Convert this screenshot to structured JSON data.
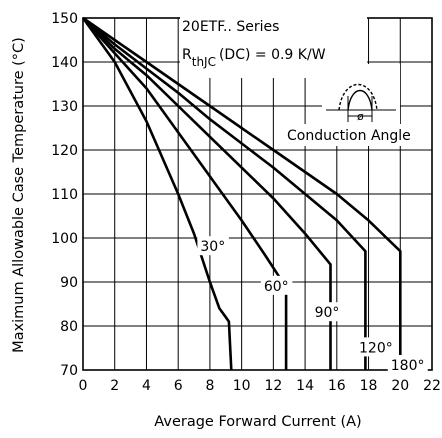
{
  "chart_data": {
    "type": "line",
    "xlabel": "Average Forward Current (A)",
    "ylabel": "Maximum Allowable Case Temperature (°C)",
    "xlim": [
      0,
      22
    ],
    "ylim": [
      70,
      150
    ],
    "x_ticks": [
      "0",
      "2",
      "4",
      "6",
      "8",
      "10",
      "12",
      "14",
      "16",
      "18",
      "20",
      "22"
    ],
    "y_ticks": [
      "70",
      "80",
      "90",
      "100",
      "110",
      "120",
      "130",
      "140",
      "150"
    ],
    "grid": true,
    "annotations": {
      "series_title": "20ETF.. Series",
      "rth_symbol": "R",
      "rth_subscript": "thJC",
      "rth_value": "(DC) = 0.9 K/W",
      "inset_phi": "ø",
      "inset_label": "Conduction Angle"
    },
    "series": [
      {
        "name": "30°",
        "label_pos": [
          7.4,
          97
        ],
        "points": [
          [
            0,
            150
          ],
          [
            2,
            140
          ],
          [
            4,
            126.5
          ],
          [
            6,
            110
          ],
          [
            7,
            101
          ],
          [
            8,
            90
          ],
          [
            8.6,
            84
          ],
          [
            9,
            82
          ],
          [
            9.2,
            81
          ],
          [
            9.35,
            70
          ]
        ]
      },
      {
        "name": "60°",
        "label_pos": [
          11.4,
          88
        ],
        "points": [
          [
            0,
            150
          ],
          [
            2,
            142
          ],
          [
            4,
            134
          ],
          [
            6,
            124
          ],
          [
            8,
            114
          ],
          [
            10,
            104
          ],
          [
            11.5,
            96
          ],
          [
            12.4,
            91
          ],
          [
            12.8,
            91
          ],
          [
            12.8,
            70
          ]
        ]
      },
      {
        "name": "90°",
        "label_pos": [
          14.6,
          82
        ],
        "points": [
          [
            0,
            150
          ],
          [
            2,
            143
          ],
          [
            4,
            137
          ],
          [
            6,
            130
          ],
          [
            8,
            123
          ],
          [
            10,
            116
          ],
          [
            12,
            109
          ],
          [
            14,
            101
          ],
          [
            15.6,
            94
          ],
          [
            15.6,
            70
          ]
        ]
      },
      {
        "name": "120°",
        "label_pos": [
          17.4,
          74
        ],
        "points": [
          [
            0,
            150
          ],
          [
            2,
            144
          ],
          [
            4,
            138.5
          ],
          [
            6,
            133
          ],
          [
            8,
            127
          ],
          [
            10,
            121.5
          ],
          [
            12,
            116
          ],
          [
            14,
            110
          ],
          [
            16,
            104
          ],
          [
            17.8,
            97
          ],
          [
            17.8,
            70
          ]
        ]
      },
      {
        "name": "180°",
        "label_pos": [
          19.4,
          70
        ],
        "points": [
          [
            0,
            150
          ],
          [
            2,
            145
          ],
          [
            4,
            140
          ],
          [
            6,
            135
          ],
          [
            8,
            130
          ],
          [
            10,
            125
          ],
          [
            12,
            120
          ],
          [
            14,
            115
          ],
          [
            16,
            110
          ],
          [
            18,
            104
          ],
          [
            20,
            97
          ],
          [
            20,
            70
          ]
        ]
      }
    ]
  }
}
